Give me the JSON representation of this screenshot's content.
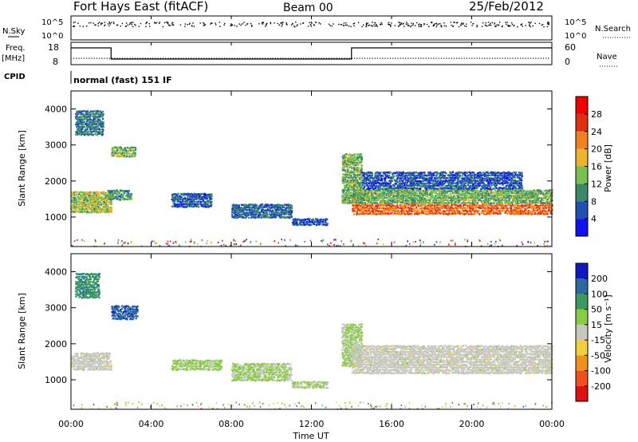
{
  "header": {
    "station": "Fort Hays East (fitACF)",
    "beam": "Beam 00",
    "date": "25/Feb/2012"
  },
  "status_panels": {
    "nsky_label": "N.Sky",
    "nsearch_label": "N.Search",
    "noise_ticks": [
      "10^5",
      "10^0"
    ],
    "freq_label": "Freq.",
    "freq_unit": "[MHz]",
    "freq_ticks": [
      "18",
      "8"
    ],
    "nave_label": "Nave",
    "nave_ticks": [
      "60",
      "0"
    ],
    "cpid_label": "CPID",
    "cpid_value": "normal (fast) 151 IF",
    "freq_steps": [
      {
        "start_hr": 0,
        "end_hr": 2.0,
        "freq_mhz": 15.5
      },
      {
        "start_hr": 2.0,
        "end_hr": 14.0,
        "freq_mhz": 10.5
      },
      {
        "start_hr": 14.0,
        "end_hr": 24,
        "freq_mhz": 15.5
      }
    ]
  },
  "x_axis": {
    "label": "Time UT",
    "ticks": [
      "00:00",
      "04:00",
      "08:00",
      "12:00",
      "16:00",
      "20:00",
      "00:00"
    ]
  },
  "y_axis": {
    "label": "Slant Range [km]",
    "ticks": [
      "1000",
      "2000",
      "3000",
      "4000"
    ],
    "range_km": [
      180,
      4500
    ]
  },
  "power_colorbar": {
    "label": "Power [dB]",
    "ticks": [
      "4",
      "8",
      "12",
      "16",
      "20",
      "24",
      "28"
    ],
    "colors": [
      "#1010f0",
      "#2050b0",
      "#3a8a6a",
      "#78c050",
      "#f0b030",
      "#f08020",
      "#e03010",
      "#f00000"
    ]
  },
  "velocity_colorbar": {
    "label": "Velocity [m s⁻¹]",
    "ticks": [
      "200",
      "100",
      "50",
      "15",
      "-15",
      "-50",
      "-100",
      "-200"
    ],
    "colors": [
      "#1018c0",
      "#2a6aa0",
      "#3a9a60",
      "#88cc44",
      "#c8c8c0",
      "#f0d040",
      "#f09020",
      "#f05020",
      "#e01010"
    ]
  },
  "chart_data": [
    {
      "type": "heatmap",
      "title": "",
      "xlabel": "Time UT",
      "ylabel": "Slant Range [km]",
      "zlabel": "Power [dB]",
      "x_range_hr": [
        0,
        24
      ],
      "y_range_km": [
        180,
        4500
      ],
      "z_range": [
        0,
        30
      ],
      "regions": [
        {
          "t0": 0.0,
          "t1": 2.0,
          "r0": 1150,
          "r1": 1750,
          "z": 14
        },
        {
          "t0": 0.2,
          "t1": 1.6,
          "r0": 3300,
          "r1": 4000,
          "z": 8
        },
        {
          "t0": 2.0,
          "t1": 3.2,
          "r0": 2700,
          "r1": 3000,
          "z": 13
        },
        {
          "t0": 1.8,
          "t1": 3.0,
          "r0": 1500,
          "r1": 1800,
          "z": 10
        },
        {
          "t0": 5.0,
          "t1": 7.0,
          "r0": 1300,
          "r1": 1700,
          "z": 6
        },
        {
          "t0": 8.0,
          "t1": 11.0,
          "r0": 1000,
          "r1": 1400,
          "z": 7
        },
        {
          "t0": 11.0,
          "t1": 12.8,
          "r0": 800,
          "r1": 1000,
          "z": 6
        },
        {
          "t0": 13.5,
          "t1": 14.5,
          "r0": 1400,
          "r1": 2800,
          "z": 12
        },
        {
          "t0": 14.0,
          "t1": 24.0,
          "r0": 1100,
          "r1": 1400,
          "z": 22
        },
        {
          "t0": 14.0,
          "t1": 24.0,
          "r0": 1400,
          "r1": 1800,
          "z": 12
        },
        {
          "t0": 14.5,
          "t1": 22.5,
          "r0": 1800,
          "r1": 2300,
          "z": 6
        }
      ]
    },
    {
      "type": "heatmap",
      "title": "",
      "xlabel": "Time UT",
      "ylabel": "Slant Range [km]",
      "zlabel": "Velocity [m s⁻¹]",
      "x_range_hr": [
        0,
        24
      ],
      "y_range_km": [
        180,
        4500
      ],
      "z_range": [
        -250,
        250
      ],
      "regions": [
        {
          "t0": 0.0,
          "t1": 2.0,
          "r0": 1300,
          "r1": 1800,
          "z": 0
        },
        {
          "t0": 0.2,
          "t1": 1.4,
          "r0": 3300,
          "r1": 4000,
          "z": 120
        },
        {
          "t0": 2.0,
          "t1": 3.3,
          "r0": 2700,
          "r1": 3100,
          "z": 180
        },
        {
          "t0": 5.0,
          "t1": 7.5,
          "r0": 1300,
          "r1": 1600,
          "z": 40
        },
        {
          "t0": 8.0,
          "t1": 11.0,
          "r0": 1000,
          "r1": 1500,
          "z": 35
        },
        {
          "t0": 11.0,
          "t1": 12.8,
          "r0": 800,
          "r1": 1000,
          "z": 30
        },
        {
          "t0": 13.5,
          "t1": 14.5,
          "r0": 1400,
          "r1": 2600,
          "z": 30
        },
        {
          "t0": 14.0,
          "t1": 24.0,
          "r0": 1200,
          "r1": 2000,
          "z": 0
        }
      ]
    }
  ]
}
